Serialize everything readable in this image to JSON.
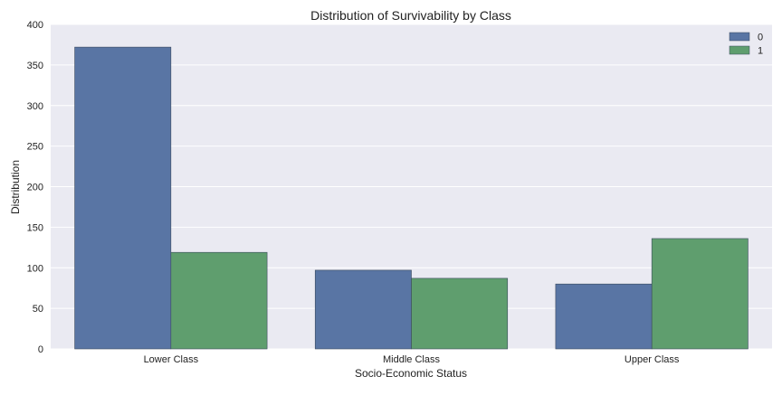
{
  "chart_data": {
    "type": "bar",
    "title": "Distribution of Survivability by Class",
    "xlabel": "Socio-Economic Status",
    "ylabel": "Distribution",
    "categories": [
      "Lower Class",
      "Middle Class",
      "Upper Class"
    ],
    "series": [
      {
        "name": "0",
        "values": [
          372,
          97,
          80
        ],
        "color": "#5975a4"
      },
      {
        "name": "1",
        "values": [
          119,
          87,
          136
        ],
        "color": "#5f9e6e"
      }
    ],
    "ylim": [
      0,
      400
    ],
    "yticks": [
      0,
      50,
      100,
      150,
      200,
      250,
      300,
      350,
      400
    ],
    "grid": true,
    "legend_position": "top-right",
    "background_color": "#eaeaf2"
  }
}
